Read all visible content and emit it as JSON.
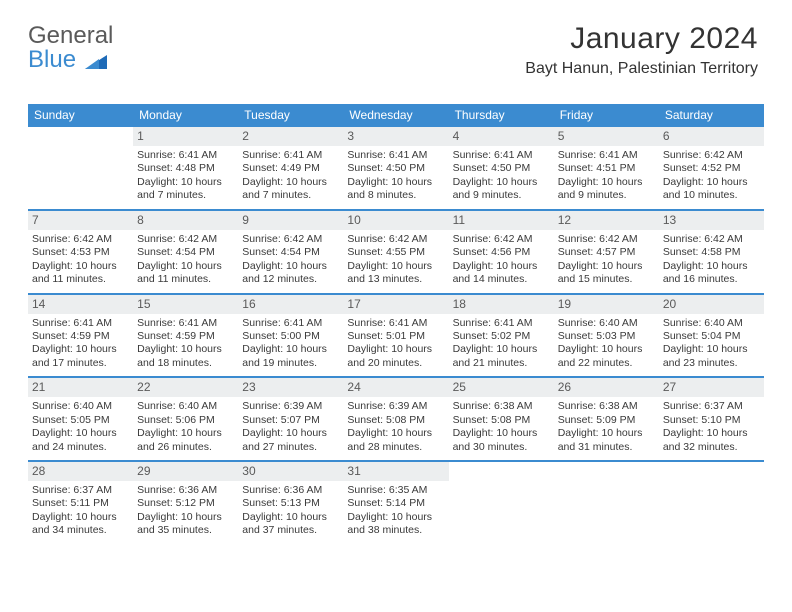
{
  "brand": {
    "line1": "General",
    "line2": "Blue",
    "accent": "#3b8bd0"
  },
  "title": {
    "month": "January 2024",
    "location": "Bayt Hanun, Palestinian Territory"
  },
  "dayHeaders": [
    "Sunday",
    "Monday",
    "Tuesday",
    "Wednesday",
    "Thursday",
    "Friday",
    "Saturday"
  ],
  "colors": {
    "header_bg": "#3b8bd0",
    "header_text": "#ffffff",
    "daynum_bg": "#eceeef",
    "text": "#3a3a3a",
    "week_divider": "#3b8bd0",
    "background": "#ffffff"
  },
  "typography": {
    "title_fontsize": 30,
    "location_fontsize": 16,
    "header_fontsize": 12,
    "daynum_fontsize": 12,
    "body_fontsize": 10.5
  },
  "layout": {
    "columns": 7,
    "rows": 6,
    "first_weekday": "Sunday",
    "first_day_column": 1
  },
  "days": [
    {
      "n": 1,
      "sunrise": "6:41 AM",
      "sunset": "4:48 PM",
      "daylight": "10 hours and 7 minutes."
    },
    {
      "n": 2,
      "sunrise": "6:41 AM",
      "sunset": "4:49 PM",
      "daylight": "10 hours and 7 minutes."
    },
    {
      "n": 3,
      "sunrise": "6:41 AM",
      "sunset": "4:50 PM",
      "daylight": "10 hours and 8 minutes."
    },
    {
      "n": 4,
      "sunrise": "6:41 AM",
      "sunset": "4:50 PM",
      "daylight": "10 hours and 9 minutes."
    },
    {
      "n": 5,
      "sunrise": "6:41 AM",
      "sunset": "4:51 PM",
      "daylight": "10 hours and 9 minutes."
    },
    {
      "n": 6,
      "sunrise": "6:42 AM",
      "sunset": "4:52 PM",
      "daylight": "10 hours and 10 minutes."
    },
    {
      "n": 7,
      "sunrise": "6:42 AM",
      "sunset": "4:53 PM",
      "daylight": "10 hours and 11 minutes."
    },
    {
      "n": 8,
      "sunrise": "6:42 AM",
      "sunset": "4:54 PM",
      "daylight": "10 hours and 11 minutes."
    },
    {
      "n": 9,
      "sunrise": "6:42 AM",
      "sunset": "4:54 PM",
      "daylight": "10 hours and 12 minutes."
    },
    {
      "n": 10,
      "sunrise": "6:42 AM",
      "sunset": "4:55 PM",
      "daylight": "10 hours and 13 minutes."
    },
    {
      "n": 11,
      "sunrise": "6:42 AM",
      "sunset": "4:56 PM",
      "daylight": "10 hours and 14 minutes."
    },
    {
      "n": 12,
      "sunrise": "6:42 AM",
      "sunset": "4:57 PM",
      "daylight": "10 hours and 15 minutes."
    },
    {
      "n": 13,
      "sunrise": "6:42 AM",
      "sunset": "4:58 PM",
      "daylight": "10 hours and 16 minutes."
    },
    {
      "n": 14,
      "sunrise": "6:41 AM",
      "sunset": "4:59 PM",
      "daylight": "10 hours and 17 minutes."
    },
    {
      "n": 15,
      "sunrise": "6:41 AM",
      "sunset": "4:59 PM",
      "daylight": "10 hours and 18 minutes."
    },
    {
      "n": 16,
      "sunrise": "6:41 AM",
      "sunset": "5:00 PM",
      "daylight": "10 hours and 19 minutes."
    },
    {
      "n": 17,
      "sunrise": "6:41 AM",
      "sunset": "5:01 PM",
      "daylight": "10 hours and 20 minutes."
    },
    {
      "n": 18,
      "sunrise": "6:41 AM",
      "sunset": "5:02 PM",
      "daylight": "10 hours and 21 minutes."
    },
    {
      "n": 19,
      "sunrise": "6:40 AM",
      "sunset": "5:03 PM",
      "daylight": "10 hours and 22 minutes."
    },
    {
      "n": 20,
      "sunrise": "6:40 AM",
      "sunset": "5:04 PM",
      "daylight": "10 hours and 23 minutes."
    },
    {
      "n": 21,
      "sunrise": "6:40 AM",
      "sunset": "5:05 PM",
      "daylight": "10 hours and 24 minutes."
    },
    {
      "n": 22,
      "sunrise": "6:40 AM",
      "sunset": "5:06 PM",
      "daylight": "10 hours and 26 minutes."
    },
    {
      "n": 23,
      "sunrise": "6:39 AM",
      "sunset": "5:07 PM",
      "daylight": "10 hours and 27 minutes."
    },
    {
      "n": 24,
      "sunrise": "6:39 AM",
      "sunset": "5:08 PM",
      "daylight": "10 hours and 28 minutes."
    },
    {
      "n": 25,
      "sunrise": "6:38 AM",
      "sunset": "5:08 PM",
      "daylight": "10 hours and 30 minutes."
    },
    {
      "n": 26,
      "sunrise": "6:38 AM",
      "sunset": "5:09 PM",
      "daylight": "10 hours and 31 minutes."
    },
    {
      "n": 27,
      "sunrise": "6:37 AM",
      "sunset": "5:10 PM",
      "daylight": "10 hours and 32 minutes."
    },
    {
      "n": 28,
      "sunrise": "6:37 AM",
      "sunset": "5:11 PM",
      "daylight": "10 hours and 34 minutes."
    },
    {
      "n": 29,
      "sunrise": "6:36 AM",
      "sunset": "5:12 PM",
      "daylight": "10 hours and 35 minutes."
    },
    {
      "n": 30,
      "sunrise": "6:36 AM",
      "sunset": "5:13 PM",
      "daylight": "10 hours and 37 minutes."
    },
    {
      "n": 31,
      "sunrise": "6:35 AM",
      "sunset": "5:14 PM",
      "daylight": "10 hours and 38 minutes."
    }
  ],
  "labels": {
    "sunrise": "Sunrise: ",
    "sunset": "Sunset: ",
    "daylight": "Daylight: "
  }
}
